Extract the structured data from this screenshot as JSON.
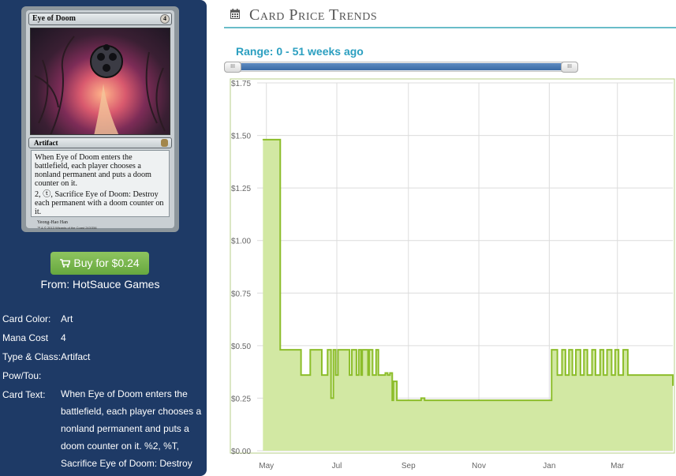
{
  "card": {
    "name": "Eye of Doom",
    "cost": "4",
    "type_line": "Artifact",
    "rules_text_1": "When Eye of Doom enters the battlefield, each player chooses a nonland permanent and puts a doom counter on it.",
    "rules_text_2": "2, ⓣ, Sacrifice Eye of Doom: Destroy each permanent with a doom counter on it.",
    "artist": "Yeong-Hao Han",
    "copyright": "™ & © 2013 Wizards of the Coast 243/356"
  },
  "buy": {
    "label": "Buy for $0.24",
    "from": "From: HotSauce Games"
  },
  "attributes": {
    "color_label": "Card Color:",
    "color_value": "Art",
    "mana_label": "Mana Cost",
    "mana_value": "4",
    "type_label": "Type & Class:",
    "type_value": "Artifact",
    "pow_label": "Pow/Tou:",
    "pow_value": "",
    "text_label": "Card Text:",
    "text_value": "When Eye of Doom enters the battlefield, each player chooses a nonland permanent and puts a doom counter on it. %2, %T, Sacrifice Eye of Doom: Destroy"
  },
  "section": {
    "title": "Card Price Trends",
    "icon": "calendar-icon"
  },
  "range": {
    "label": "Range: 0 - 51 weeks ago",
    "start_weeks_ago": 51,
    "end_weeks_ago": 0
  },
  "colors": {
    "sidebar": "#1e3a66",
    "buy_button": "#75b34c",
    "accent": "#2b9fc0",
    "slider": "#4a78b2",
    "chart_line": "#8cbd2a",
    "chart_fill": "#d2e8a3"
  },
  "chart_data": {
    "type": "area",
    "title": "",
    "xlabel": "",
    "ylabel": "",
    "ylim": [
      0,
      1.75
    ],
    "yticks": [
      "$0.00",
      "$0.25",
      "$0.50",
      "$0.75",
      "$1.00",
      "$1.25",
      "$1.50",
      "$1.75"
    ],
    "xticks": [
      "May",
      "Jul",
      "Sep",
      "Nov",
      "Jan",
      "Mar"
    ],
    "grid": true,
    "series": [
      {
        "x": [
          "2013-04-28",
          "2013-05-01",
          "2013-05-03",
          "2013-05-10",
          "2013-05-13",
          "2013-05-18",
          "2013-05-21",
          "2013-05-26",
          "2013-05-31",
          "2013-06-01",
          "2013-06-04",
          "2013-06-08",
          "2013-06-09",
          "2013-06-13",
          "2013-06-18",
          "2013-06-23",
          "2013-06-24",
          "2013-06-26",
          "2013-06-28",
          "2013-06-30",
          "2013-07-02",
          "2013-07-05",
          "2013-07-08",
          "2013-07-12",
          "2013-07-14",
          "2013-07-16",
          "2013-07-18",
          "2013-07-20",
          "2013-07-22",
          "2013-07-23",
          "2013-07-25",
          "2013-07-28",
          "2013-07-29",
          "2013-08-01",
          "2013-08-04",
          "2013-08-06",
          "2013-08-10",
          "2013-08-12",
          "2013-08-14",
          "2013-08-16",
          "2013-08-18",
          "2013-08-19",
          "2013-08-22",
          "2013-08-27",
          "2013-09-01",
          "2013-09-05",
          "2013-09-07",
          "2013-09-09",
          "2013-09-12",
          "2013-09-15",
          "2013-09-20",
          "2013-10-01",
          "2013-10-15",
          "2013-11-01",
          "2013-11-15",
          "2013-12-01",
          "2013-12-15",
          "2014-01-01",
          "2014-01-03",
          "2014-01-05",
          "2014-01-08",
          "2014-01-12",
          "2014-01-15",
          "2014-01-18",
          "2014-01-21",
          "2014-01-24",
          "2014-01-28",
          "2014-01-31",
          "2014-02-03",
          "2014-02-07",
          "2014-02-10",
          "2014-02-14",
          "2014-02-17",
          "2014-02-20",
          "2014-02-24",
          "2014-02-27",
          "2014-03-02",
          "2014-03-06",
          "2014-03-10",
          "2014-03-14",
          "2014-03-20",
          "2014-03-28",
          "2014-04-05",
          "2014-04-12",
          "2014-04-17",
          "2014-04-18"
        ],
        "y": [
          1.48,
          1.48,
          1.48,
          1.48,
          0.48,
          0.48,
          0.48,
          0.48,
          0.36,
          0.36,
          0.36,
          0.48,
          0.48,
          0.48,
          0.36,
          0.48,
          0.48,
          0.25,
          0.48,
          0.36,
          0.48,
          0.48,
          0.48,
          0.36,
          0.48,
          0.48,
          0.36,
          0.48,
          0.36,
          0.48,
          0.48,
          0.36,
          0.48,
          0.36,
          0.48,
          0.36,
          0.36,
          0.37,
          0.36,
          0.37,
          0.24,
          0.33,
          0.24,
          0.24,
          0.24,
          0.24,
          0.24,
          0.24,
          0.25,
          0.24,
          0.24,
          0.24,
          0.24,
          0.24,
          0.24,
          0.24,
          0.24,
          0.24,
          0.48,
          0.48,
          0.36,
          0.48,
          0.36,
          0.48,
          0.36,
          0.48,
          0.36,
          0.48,
          0.36,
          0.48,
          0.36,
          0.48,
          0.36,
          0.48,
          0.36,
          0.48,
          0.36,
          0.48,
          0.36,
          0.36,
          0.36,
          0.36,
          0.36,
          0.36,
          0.36,
          0.31
        ]
      }
    ]
  }
}
